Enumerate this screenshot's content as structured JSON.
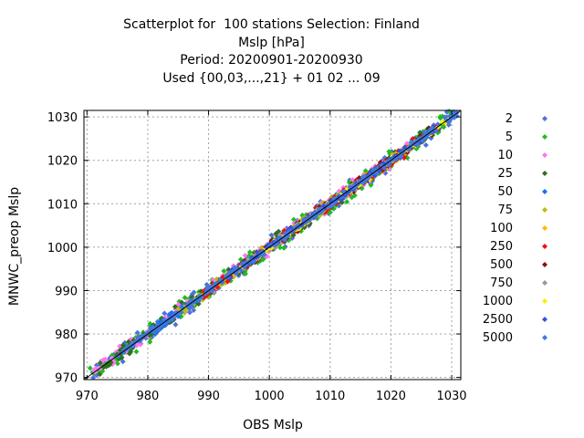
{
  "chart_data": {
    "type": "scatter",
    "title_lines": [
      "Scatterplot for  100 stations Selection: Finland",
      "Mslp [hPa]",
      "Period: 20200901-20200930",
      "Used {00,03,...,21} + 01 02 ... 09"
    ],
    "xlabel": "OBS Mslp",
    "ylabel": "MNWC_preop Mslp",
    "xlim": [
      969.5,
      1031.5
    ],
    "ylim": [
      969.5,
      1031.5
    ],
    "xticks": [
      970,
      980,
      990,
      1000,
      1010,
      1020,
      1030
    ],
    "yticks": [
      970,
      980,
      990,
      1000,
      1010,
      1020,
      1030
    ],
    "grid": true,
    "legend_position": "right",
    "series": [
      {
        "name": "2",
        "color": "#5070e0",
        "ranges": [
          [
            970,
            1031
          ]
        ],
        "spread": 2.0
      },
      {
        "name": "5",
        "color": "#22bb22",
        "ranges": [
          [
            970,
            1030
          ]
        ],
        "spread": 2.0
      },
      {
        "name": "10",
        "color": "#ff77ee",
        "ranges": [
          [
            971,
            1025
          ]
        ],
        "spread": 1.6
      },
      {
        "name": "25",
        "color": "#2f6f1f",
        "ranges": [
          [
            972,
            1028
          ]
        ],
        "spread": 1.6
      },
      {
        "name": "50",
        "color": "#1177ee",
        "ranges": [
          [
            980,
            990
          ]
        ],
        "spread": 1.2
      },
      {
        "name": "75",
        "color": "#bbbb11",
        "ranges": [
          [
            985,
            1025
          ]
        ],
        "spread": 1.2
      },
      {
        "name": "100",
        "color": "#ffbb00",
        "ranges": [
          [
            990,
            1025
          ]
        ],
        "spread": 1.0
      },
      {
        "name": "250",
        "color": "#ee1111",
        "ranges": [
          [
            989,
            1028
          ]
        ],
        "spread": 1.2
      },
      {
        "name": "500",
        "color": "#8b1111",
        "ranges": [
          [
            995,
            1027
          ]
        ],
        "spread": 1.0
      },
      {
        "name": "750",
        "color": "#999999",
        "ranges": [
          [
            995,
            1015
          ]
        ],
        "spread": 1.0
      },
      {
        "name": "1000",
        "color": "#ffee00",
        "ranges": [
          [
            995,
            1030
          ]
        ],
        "spread": 0.6
      },
      {
        "name": "2500",
        "color": "#3355dd",
        "ranges": [
          [
            993,
            1027
          ]
        ],
        "spread": 0.8
      },
      {
        "name": "5000",
        "color": "#4477dd",
        "ranges": [
          [
            975,
            1031
          ]
        ],
        "spread": 0.8
      }
    ]
  }
}
